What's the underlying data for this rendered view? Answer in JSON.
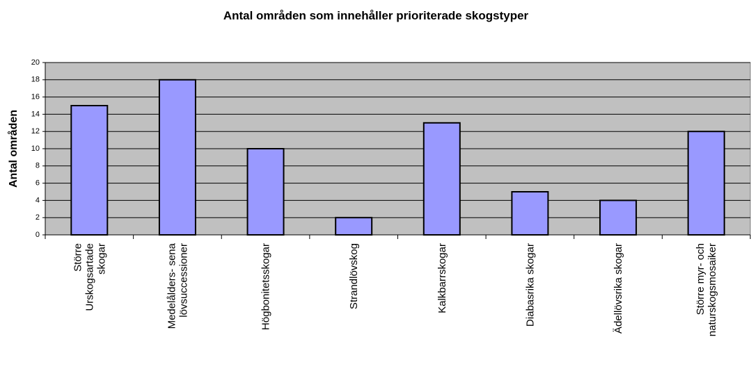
{
  "chart_data": {
    "type": "bar",
    "title": "Antal områden som innehåller prioriterade skogstyper",
    "y_label": "Antal områden",
    "categories": [
      "Större\nUrskogsartade\nskogar",
      "Medelålders- sena\nlövsuccessioner",
      "Högbonitetsskogar",
      "Strandlövskog",
      "Kalkbarrskogar",
      "Diabasrika skogar",
      "Ädellövsrika skogar",
      "Större myr- och\nnaturskogsmosaiker"
    ],
    "values": [
      15,
      18,
      10,
      2,
      13,
      5,
      4,
      12
    ],
    "color": "#9999ff",
    "background": "#c0c0c0",
    "ylim": [
      0,
      20
    ],
    "yticks": [
      0,
      2,
      4,
      6,
      8,
      10,
      12,
      14,
      16,
      18,
      20
    ],
    "grid": true
  }
}
